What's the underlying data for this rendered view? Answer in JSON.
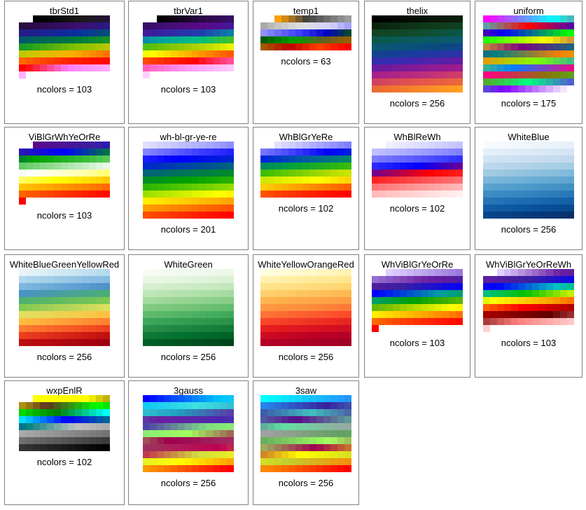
{
  "colormaps": [
    {
      "name": "tbrStd1",
      "ncolors_label": "ncolors = 103",
      "stops": [
        "#000000",
        "#1a1a1a",
        "#2d0a4a",
        "#3b0f70",
        "#1f1f8f",
        "#0a2fa0",
        "#006060",
        "#007a3d",
        "#20a020",
        "#7fc000",
        "#c8c800",
        "#ffb000",
        "#ff6000",
        "#ff2000",
        "#ff0000",
        "#ff80ff",
        "#ffb0ff"
      ]
    },
    {
      "name": "tbrVar1",
      "ncolors_label": "ncolors = 103",
      "stops": [
        "#000000",
        "#2d0a4a",
        "#3b0f70",
        "#5a0a8a",
        "#3a1fa0",
        "#1f3fb0",
        "#00a0a0",
        "#00c080",
        "#60c000",
        "#b0d000",
        "#ffff00",
        "#ffa000",
        "#ff4000",
        "#ff0000",
        "#ff60c0",
        "#ffa0ff",
        "#ffd0ff"
      ]
    },
    {
      "name": "temp1",
      "ncolors_label": "ncolors = 63",
      "stops": [
        "#ffa000",
        "#404040",
        "#808080",
        "#c0c0c0",
        "#e0e0e0",
        "#d0d0ff",
        "#8080ff",
        "#4040ff",
        "#0000c0",
        "#006000",
        "#00a000",
        "#606020",
        "#a06000",
        "#c00000",
        "#ff4000",
        "#ff0000"
      ]
    },
    {
      "name": "thelix",
      "ncolors_label": "ncolors = 256",
      "stops": [
        "#000000",
        "#0a1a0a",
        "#103a1a",
        "#104a2a",
        "#0a5a50",
        "#0a5a70",
        "#0a4a80",
        "#1a3aa0",
        "#3a2ab0",
        "#6a1aa0",
        "#9a1a90",
        "#c0307a",
        "#e05050",
        "#f07030",
        "#ffa020"
      ]
    },
    {
      "name": "uniform",
      "ncolors_label": "ncolors = 175",
      "stops": [
        "#ff00ff",
        "#00ffff",
        "#ff0000",
        "#0000ff",
        "#00ff00",
        "#ffff00",
        "#800080",
        "#008080",
        "#ff8000",
        "#80ff00",
        "#0080ff",
        "#ff0080",
        "#808000",
        "#00ff80",
        "#8000ff",
        "#ffffff"
      ]
    },
    {
      "name": "ViBlGrWhYeOrRe",
      "ncolors_label": "ncolors = 103",
      "stops": [
        "#5a0a8a",
        "#3a1fa0",
        "#0000ff",
        "#00a000",
        "#40c040",
        "#a0e0a0",
        "#ffffff",
        "#ffffa0",
        "#ffff00",
        "#ffc000",
        "#ff8000",
        "#ff4000",
        "#ff0000"
      ]
    },
    {
      "name": "wh-bl-gr-ye-re",
      "ncolors_label": "ncolors = 201",
      "stops": [
        "#e0e0ff",
        "#a0a0ff",
        "#4040ff",
        "#0000ff",
        "#0030c0",
        "#006080",
        "#008040",
        "#00a000",
        "#40c000",
        "#a0e000",
        "#ffff00",
        "#ffc000",
        "#ff8000",
        "#ff4000",
        "#ff0000"
      ]
    },
    {
      "name": "WhBlGrYeRe",
      "ncolors_label": "ncolors = 102",
      "stops": [
        "#e0e0ff",
        "#8080ff",
        "#0000ff",
        "#0060a0",
        "#00a040",
        "#40c000",
        "#c0e000",
        "#ffff00",
        "#ffa000",
        "#ff4000",
        "#ff0000"
      ]
    },
    {
      "name": "WhBlReWh",
      "ncolors_label": "ncolors = 102",
      "stops": [
        "#f0f0ff",
        "#b0b0ff",
        "#6060ff",
        "#0000ff",
        "#ff0000",
        "#ff6060",
        "#ffb0b0",
        "#fff0f0"
      ]
    },
    {
      "name": "WhiteBlue",
      "ncolors_label": "ncolors = 256",
      "stops": [
        "#f7fbff",
        "#deebf7",
        "#c6dbef",
        "#9ecae1",
        "#6baed6",
        "#4292c6",
        "#2171b5",
        "#08519c",
        "#08306b"
      ]
    },
    {
      "name": "WhiteBlueGreenYellowRed",
      "ncolors_label": "ncolors = 256",
      "stops": [
        "#e8f4f8",
        "#b0d8ec",
        "#80b8e0",
        "#4a90c8",
        "#4ab070",
        "#80c850",
        "#e0e060",
        "#ffc040",
        "#ff8030",
        "#f04020",
        "#c01010",
        "#a00010"
      ]
    },
    {
      "name": "WhiteGreen",
      "ncolors_label": "ncolors = 256",
      "stops": [
        "#f7fcf5",
        "#e5f5e0",
        "#c7e9c0",
        "#a1d99b",
        "#74c476",
        "#41ab5d",
        "#238b45",
        "#006d2c",
        "#00441b"
      ]
    },
    {
      "name": "WhiteYellowOrangeRed",
      "ncolors_label": "ncolors = 256",
      "stops": [
        "#ffffe0",
        "#ffeda0",
        "#fed976",
        "#feb24c",
        "#fd8d3c",
        "#fc4e2a",
        "#e31a1c",
        "#bd0026",
        "#a00026"
      ]
    },
    {
      "name": "WhViBlGrYeOrRe",
      "ncolors_label": "ncolors = 103",
      "stops": [
        "#e0d0ff",
        "#a080e0",
        "#6a1fa0",
        "#3a1fa0",
        "#0000ff",
        "#00a0a0",
        "#00a000",
        "#80c000",
        "#ffff00",
        "#ffa000",
        "#ff4000",
        "#ff0000"
      ]
    },
    {
      "name": "WhViBlGrYeOrReWh",
      "ncolors_label": "ncolors = 103",
      "stops": [
        "#e0d0ff",
        "#6a1fa0",
        "#3a1fa0",
        "#0000ff",
        "#00c0c0",
        "#00c000",
        "#ffff00",
        "#ffa000",
        "#ff0000",
        "#a00000",
        "#600000",
        "#ff8080",
        "#ffd0d0"
      ]
    },
    {
      "name": "wxpEnlR",
      "ncolors_label": "ncolors = 102",
      "stops": [
        "#ffff00",
        "#ffff00",
        "#603020",
        "#00ff00",
        "#008000",
        "#00ffff",
        "#0000ff",
        "#008080",
        "#c0c0c0",
        "#a0a0a0",
        "#808080",
        "#606060",
        "#404040",
        "#202020",
        "#000000"
      ]
    },
    {
      "name": "3gauss",
      "ncolors_label": "ncolors = 256",
      "stops": [
        "#0000ff",
        "#00c0ff",
        "#40e0e0",
        "#20a0c0",
        "#6a1fa0",
        "#4a2ab0",
        "#80e080",
        "#a0ff60",
        "#a00050",
        "#a03060",
        "#c00050",
        "#d0e040",
        "#ffff00",
        "#ff8000",
        "#ff0000"
      ]
    },
    {
      "name": "3saw",
      "ncolors_label": "ncolors = 256",
      "stops": [
        "#00ffff",
        "#20a0ff",
        "#3a1fa0",
        "#40c0c0",
        "#5a0a8a",
        "#60e0a0",
        "#a0a0a0",
        "#60a060",
        "#a0ff60",
        "#a00050",
        "#ffff00",
        "#c0d030",
        "#ff8000",
        "#ff0000"
      ]
    }
  ]
}
